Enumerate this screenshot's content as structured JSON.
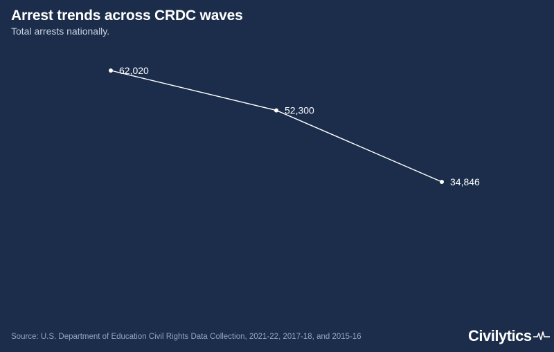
{
  "header": {
    "title": "Arrest trends across CRDC waves",
    "subtitle": "Total arrests nationally."
  },
  "footer": {
    "source": "Source: U.S. Department of Education Civil Rights Data Collection, 2021-22, 2017-18, and 2015-16",
    "brand": "Civilytics",
    "brand_icon": "pulse-line-icon"
  },
  "colors": {
    "background": "#1b2d4a",
    "line": "#ffffff",
    "title": "#ffffff",
    "subtitle": "#c9d2e0",
    "source": "#8fa4c2"
  },
  "chart_data": {
    "type": "line",
    "title": "Arrest trends across CRDC waves",
    "subtitle": "Total arrests nationally.",
    "xlabel": "",
    "ylabel": "",
    "x_axis_visible": false,
    "y_axis_visible": false,
    "grid": false,
    "ylim": [
      0,
      70000
    ],
    "series": [
      {
        "points": [
          {
            "label": "62,020",
            "value": 62020
          },
          {
            "label": "52,300",
            "value": 52300
          },
          {
            "label": "34,846",
            "value": 34846
          }
        ]
      }
    ]
  }
}
